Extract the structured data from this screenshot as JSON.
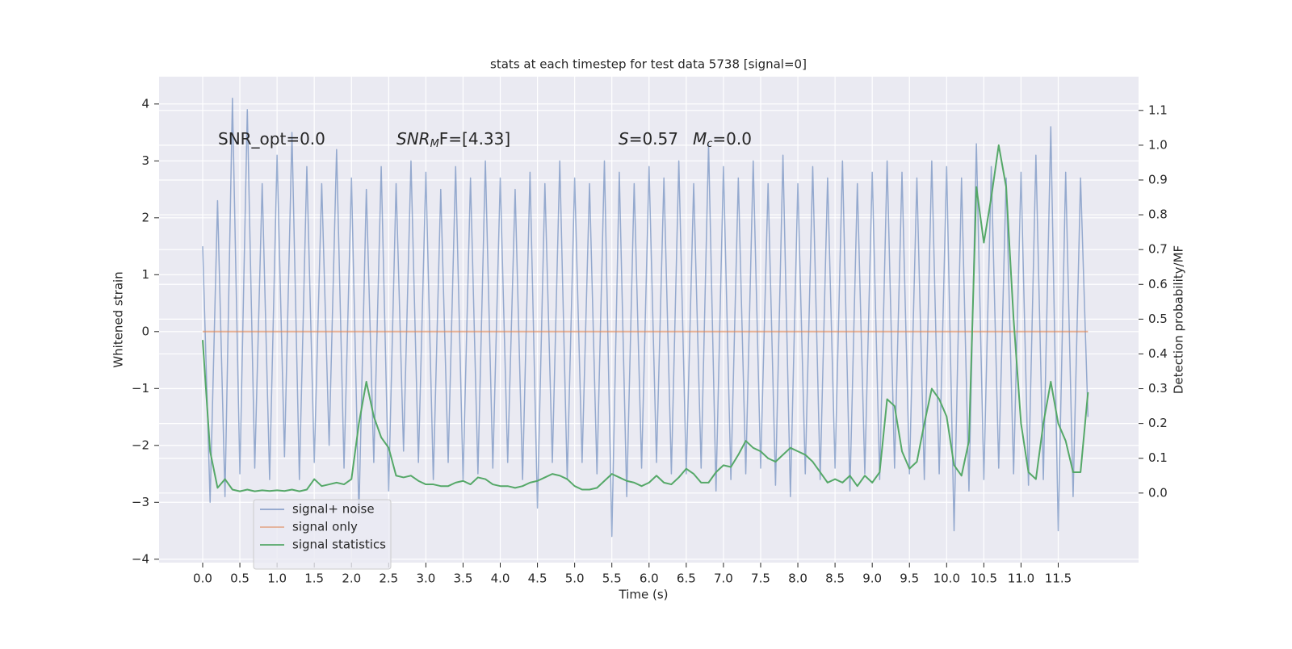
{
  "chart_data": {
    "type": "line",
    "title": "stats at each timestep for test data 5738 [signal=0]",
    "xlabel": "Time (s)",
    "ylabel": "Whitened strain",
    "y2label": "Detection probability/MF",
    "annotations": [
      {
        "parts": [
          "SNR_opt=0.0"
        ]
      },
      {
        "parts": [
          "SNR",
          "M",
          "F=[4.33]"
        ]
      },
      {
        "parts": [
          "S",
          "=0.57",
          "M",
          "c",
          "=0.0"
        ]
      }
    ],
    "grid": true,
    "legend": "lower left",
    "xlim": [
      -0.586,
      12.58
    ],
    "ylim": [
      -4.06,
      4.48
    ],
    "y2lim": [
      -0.2,
      1.197
    ],
    "xticks": [
      {
        "value": 0,
        "label": "0.0"
      },
      {
        "value": 0.5,
        "label": "0.5"
      },
      {
        "value": 1,
        "label": "1.0"
      },
      {
        "value": 1.5,
        "label": "1.5"
      },
      {
        "value": 2,
        "label": "2.0"
      },
      {
        "value": 2.5,
        "label": "2.5"
      },
      {
        "value": 3,
        "label": "3.0"
      },
      {
        "value": 3.5,
        "label": "3.5"
      },
      {
        "value": 4,
        "label": "4.0"
      },
      {
        "value": 4.5,
        "label": "4.5"
      },
      {
        "value": 5,
        "label": "5.0"
      },
      {
        "value": 5.5,
        "label": "5.5"
      },
      {
        "value": 6,
        "label": "6.0"
      },
      {
        "value": 6.5,
        "label": "6.5"
      },
      {
        "value": 7,
        "label": "7.0"
      },
      {
        "value": 7.5,
        "label": "7.5"
      },
      {
        "value": 8,
        "label": "8.0"
      },
      {
        "value": 8.5,
        "label": "8.5"
      },
      {
        "value": 9,
        "label": "9.0"
      },
      {
        "value": 9.5,
        "label": "9.5"
      },
      {
        "value": 10,
        "label": "10.0"
      },
      {
        "value": 10.5,
        "label": "10.5"
      },
      {
        "value": 11,
        "label": "11.0"
      },
      {
        "value": 11.5,
        "label": "11.5"
      }
    ],
    "yticks": [
      {
        "value": -4,
        "label": "−4"
      },
      {
        "value": -3,
        "label": "−3"
      },
      {
        "value": -2,
        "label": "−2"
      },
      {
        "value": -1,
        "label": "−1"
      },
      0,
      1,
      2,
      3,
      4
    ],
    "y2ticks": [
      {
        "value": 0,
        "label": "0.0"
      },
      {
        "value": 0.1,
        "label": "0.1"
      },
      {
        "value": 0.2,
        "label": "0.2"
      },
      {
        "value": 0.3,
        "label": "0.3"
      },
      {
        "value": 0.4,
        "label": "0.4"
      },
      {
        "value": 0.5,
        "label": "0.5"
      },
      {
        "value": 0.6,
        "label": "0.6"
      },
      {
        "value": 0.7,
        "label": "0.7"
      },
      {
        "value": 0.8,
        "label": "0.8"
      },
      {
        "value": 0.9,
        "label": "0.9"
      },
      {
        "value": 1,
        "label": "1.0"
      },
      {
        "value": 1.1,
        "label": "1.1"
      }
    ],
    "x": [
      0,
      0.1,
      0.2,
      0.3,
      0.4,
      0.5,
      0.6,
      0.7,
      0.8,
      0.9,
      1,
      1.1,
      1.2,
      1.3,
      1.4,
      1.5,
      1.6,
      1.7,
      1.8,
      1.9,
      2,
      2.1,
      2.2,
      2.3,
      2.4,
      2.5,
      2.6,
      2.7,
      2.8,
      2.9,
      3,
      3.1,
      3.2,
      3.3,
      3.4,
      3.5,
      3.6,
      3.7,
      3.8,
      3.9,
      4,
      4.1,
      4.2,
      4.3,
      4.4,
      4.5,
      4.6,
      4.7,
      4.8,
      4.9,
      5,
      5.1,
      5.2,
      5.3,
      5.4,
      5.5,
      5.6,
      5.7,
      5.8,
      5.9,
      6,
      6.1,
      6.2,
      6.3,
      6.4,
      6.5,
      6.6,
      6.7,
      6.8,
      6.9,
      7,
      7.1,
      7.2,
      7.3,
      7.4,
      7.5,
      7.6,
      7.7,
      7.8,
      7.9,
      8,
      8.1,
      8.2,
      8.3,
      8.4,
      8.5,
      8.6,
      8.7,
      8.8,
      8.9,
      9,
      9.1,
      9.2,
      9.3,
      9.4,
      9.5,
      9.6,
      9.7,
      9.8,
      9.9,
      10,
      10.1,
      10.2,
      10.3,
      10.4,
      10.5,
      10.6,
      10.7,
      10.8,
      10.9,
      11,
      11.1,
      11.2,
      11.3,
      11.4,
      11.5,
      11.6,
      11.7,
      11.8,
      11.9
    ],
    "series": [
      {
        "name": "signal+ noise",
        "color": "#4c72b0",
        "values": [
          1.5,
          -3.0,
          2.3,
          -2.9,
          4.1,
          -2.5,
          3.9,
          -2.4,
          2.6,
          -2.6,
          3.1,
          -2.2,
          3.5,
          -2.6,
          2.9,
          -2.3,
          2.6,
          -2.0,
          3.2,
          -2.4,
          2.7,
          -3.2,
          2.5,
          -2.3,
          2.9,
          -2.8,
          2.6,
          -2.1,
          3.0,
          -2.3,
          2.8,
          -2.6,
          2.5,
          -2.3,
          2.9,
          -2.6,
          2.7,
          -2.5,
          3.0,
          -2.4,
          2.7,
          -2.3,
          2.5,
          -2.6,
          2.8,
          -3.1,
          2.6,
          -2.3,
          3.0,
          -2.6,
          2.7,
          -2.3,
          2.6,
          -2.5,
          3.0,
          -3.6,
          2.8,
          -2.9,
          2.6,
          -2.4,
          2.9,
          -2.3,
          2.7,
          -2.5,
          3.0,
          -2.5,
          2.6,
          -2.4,
          3.3,
          -2.8,
          2.9,
          -2.6,
          2.7,
          -2.5,
          3.0,
          -2.4,
          2.6,
          -2.7,
          3.1,
          -2.9,
          2.6,
          -2.5,
          2.9,
          -2.6,
          2.7,
          -2.4,
          3.0,
          -2.8,
          2.6,
          -2.5,
          2.8,
          -2.6,
          3.0,
          -2.4,
          2.8,
          -2.5,
          2.7,
          -2.6,
          3.0,
          -2.5,
          2.9,
          -3.5,
          2.7,
          -2.8,
          3.3,
          -2.6,
          2.9,
          -2.4,
          2.7,
          -2.5,
          2.8,
          -2.7,
          3.1,
          -2.6,
          3.6,
          -3.5,
          2.8,
          -2.9,
          2.7,
          -1.5
        ]
      },
      {
        "name": "signal only",
        "color": "#dd8452",
        "values": [
          0,
          0,
          0,
          0,
          0,
          0,
          0,
          0,
          0,
          0,
          0,
          0,
          0,
          0,
          0,
          0,
          0,
          0,
          0,
          0,
          0,
          0,
          0,
          0,
          0,
          0,
          0,
          0,
          0,
          0,
          0,
          0,
          0,
          0,
          0,
          0,
          0,
          0,
          0,
          0,
          0,
          0,
          0,
          0,
          0,
          0,
          0,
          0,
          0,
          0,
          0,
          0,
          0,
          0,
          0,
          0,
          0,
          0,
          0,
          0,
          0,
          0,
          0,
          0,
          0,
          0,
          0,
          0,
          0,
          0,
          0,
          0,
          0,
          0,
          0,
          0,
          0,
          0,
          0,
          0,
          0,
          0,
          0,
          0,
          0,
          0,
          0,
          0,
          0,
          0,
          0,
          0,
          0,
          0,
          0,
          0,
          0,
          0,
          0,
          0,
          0,
          0,
          0,
          0,
          0,
          0,
          0,
          0,
          0,
          0,
          0,
          0,
          0,
          0,
          0,
          0,
          0,
          0,
          0,
          0
        ]
      },
      {
        "name": "signal statistics",
        "color": "#55a868",
        "axis": "y2",
        "values": [
          0.44,
          0.12,
          0.015,
          0.04,
          0.01,
          0.005,
          0.01,
          0.005,
          0.008,
          0.006,
          0.008,
          0.006,
          0.01,
          0.005,
          0.01,
          0.04,
          0.02,
          0.025,
          0.03,
          0.025,
          0.04,
          0.2,
          0.32,
          0.22,
          0.16,
          0.13,
          0.05,
          0.045,
          0.05,
          0.035,
          0.025,
          0.025,
          0.02,
          0.02,
          0.03,
          0.035,
          0.025,
          0.045,
          0.04,
          0.025,
          0.02,
          0.02,
          0.015,
          0.02,
          0.03,
          0.035,
          0.045,
          0.055,
          0.05,
          0.04,
          0.02,
          0.01,
          0.01,
          0.015,
          0.035,
          0.055,
          0.045,
          0.035,
          0.03,
          0.02,
          0.03,
          0.05,
          0.03,
          0.025,
          0.045,
          0.07,
          0.055,
          0.03,
          0.03,
          0.06,
          0.08,
          0.075,
          0.11,
          0.15,
          0.13,
          0.12,
          0.1,
          0.09,
          0.11,
          0.13,
          0.12,
          0.11,
          0.09,
          0.06,
          0.03,
          0.04,
          0.03,
          0.05,
          0.02,
          0.05,
          0.03,
          0.06,
          0.27,
          0.25,
          0.12,
          0.07,
          0.09,
          0.2,
          0.3,
          0.27,
          0.22,
          0.08,
          0.05,
          0.15,
          0.88,
          0.72,
          0.85,
          1.0,
          0.88,
          0.5,
          0.2,
          0.06,
          0.04,
          0.2,
          0.32,
          0.2,
          0.15,
          0.06,
          0.06,
          0.29
        ]
      }
    ]
  }
}
